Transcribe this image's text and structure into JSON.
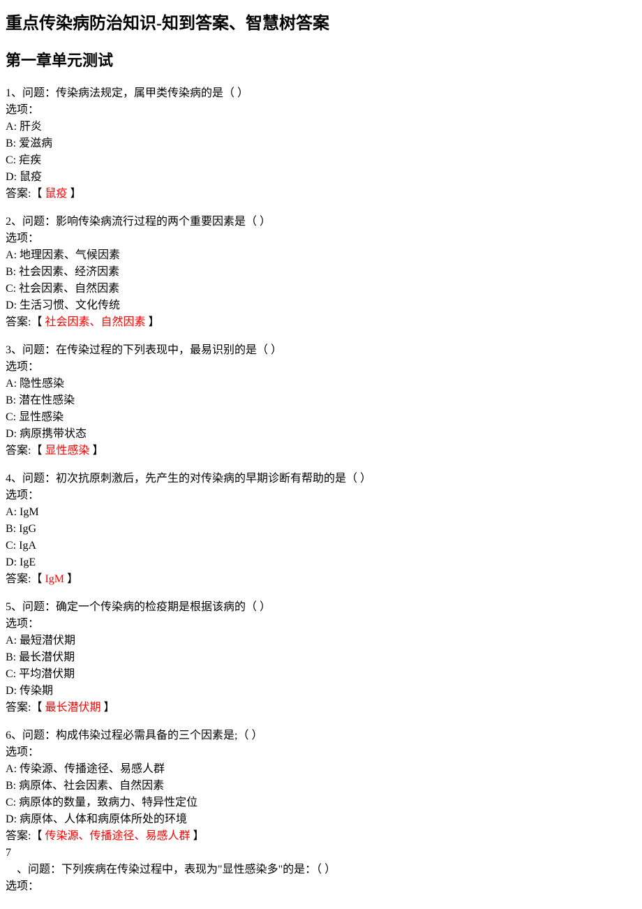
{
  "main_title": "重点传染病防治知识-知到答案、智慧树答案",
  "chapter_title": "第一章单元测试",
  "colors": {
    "text": "#000000",
    "background": "#ffffff",
    "answer": "#ff0000"
  },
  "questions": [
    {
      "number": "1",
      "question": "传染病法规定，属甲类传染病的是（ ）",
      "options_label": "选项：",
      "options": [
        {
          "key": "A",
          "text": "肝炎"
        },
        {
          "key": "B",
          "text": "爱滋病"
        },
        {
          "key": "C",
          "text": "疟疾"
        },
        {
          "key": "D",
          "text": "鼠疫"
        }
      ],
      "answer_label": "答案:",
      "answer": "鼠疫"
    },
    {
      "number": "2",
      "question": "影响传染病流行过程的两个重要因素是（ ）",
      "options_label": "选项：",
      "options": [
        {
          "key": "A",
          "text": "地理因素、气候因素"
        },
        {
          "key": "B",
          "text": "社会因素、经济因素"
        },
        {
          "key": "C",
          "text": "社会因素、自然因素"
        },
        {
          "key": "D",
          "text": "生活习惯、文化传统"
        }
      ],
      "answer_label": "答案:",
      "answer": "社会因素、自然因素"
    },
    {
      "number": "3",
      "question": "在传染过程的下列表现中，最易识别的是（ ）",
      "options_label": "选项：",
      "options": [
        {
          "key": "A",
          "text": "隐性感染"
        },
        {
          "key": "B",
          "text": "潜在性感染"
        },
        {
          "key": "C",
          "text": "显性感染"
        },
        {
          "key": "D",
          "text": "病原携带状态"
        }
      ],
      "answer_label": "答案:",
      "answer": "显性感染"
    },
    {
      "number": "4",
      "question": "初次抗原刺激后，先产生的对传染病的早期诊断有帮助的是（ ）",
      "options_label": "选项：",
      "options": [
        {
          "key": "A",
          "text": "IgM"
        },
        {
          "key": "B",
          "text": "IgG"
        },
        {
          "key": "C",
          "text": "IgA"
        },
        {
          "key": "D",
          "text": "IgE"
        }
      ],
      "answer_label": "答案:",
      "answer": "IgM"
    },
    {
      "number": "5",
      "question": "确定一个传染病的检疫期是根据该病的（ ）",
      "options_label": "选项：",
      "options": [
        {
          "key": "A",
          "text": "最短潜伏期"
        },
        {
          "key": "B",
          "text": "最长潜伏期"
        },
        {
          "key": "C",
          "text": "平均潜伏期"
        },
        {
          "key": "D",
          "text": "传染期"
        }
      ],
      "answer_label": "答案:",
      "answer": "最长潜伏期"
    },
    {
      "number": "6",
      "question": "构成伟染过程必需具备的三个因素是;（ ）",
      "options_label": "选项：",
      "options": [
        {
          "key": "A",
          "text": "传染源、传播途径、易感人群"
        },
        {
          "key": "B",
          "text": "病原体、社会因素、自然因素"
        },
        {
          "key": "C",
          "text": "病原体的数量，致病力、特异性定位"
        },
        {
          "key": "D",
          "text": "病原体、人体和病原体所处的环境"
        }
      ],
      "answer_label": "答案:",
      "answer": "传染源、传播途径、易感人群"
    }
  ],
  "question7": {
    "number": "7",
    "question_prefix": "、问题：",
    "question": "下列疾病在传染过程中，表现为\"显性感染多\"的是：（ ）",
    "options_label": "选项："
  },
  "labels": {
    "question_prefix": "、问题：",
    "bracket_open": "【",
    "bracket_close": " 】"
  }
}
